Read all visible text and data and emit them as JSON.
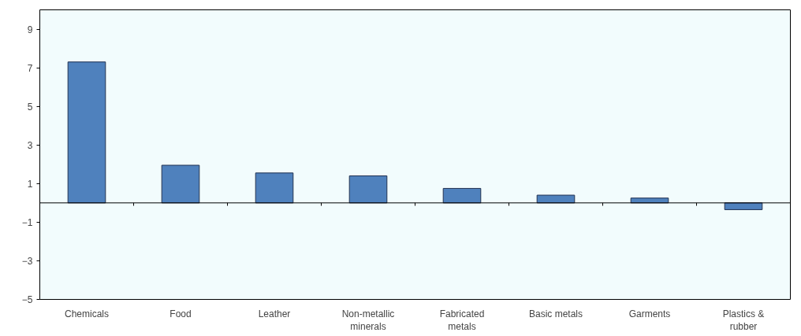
{
  "chart_data": {
    "type": "bar",
    "categories": [
      "Chemicals",
      "Food",
      "Leather",
      "Non-metallic minerals",
      "Fabricated metals",
      "Basic metals",
      "Garments",
      "Plastics & rubber"
    ],
    "values": [
      7.3,
      1.95,
      1.55,
      1.4,
      0.75,
      0.4,
      0.25,
      -0.35
    ],
    "color": "#4f81bd",
    "ylim": [
      -5,
      10
    ],
    "yticks": [
      -5,
      -3,
      -1,
      1,
      3,
      5,
      7,
      9
    ],
    "grid": false
  }
}
